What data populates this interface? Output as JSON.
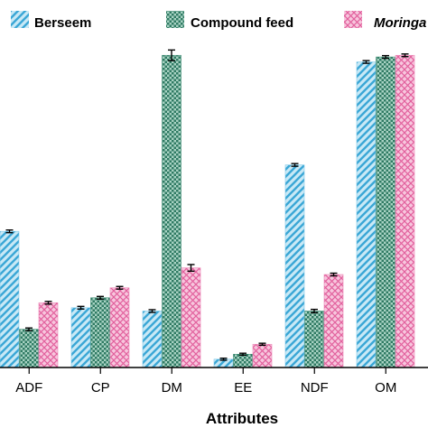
{
  "chart_data": {
    "type": "bar",
    "xlabel": "Attributes",
    "ylabel": "",
    "title": "",
    "categories": [
      "ADF",
      "CP",
      "DM",
      "EE",
      "NDF",
      "OM"
    ],
    "ylim": [
      0,
      100
    ],
    "legend_position": "top",
    "series": [
      {
        "name": "Berseem",
        "color": "#7fc9e8",
        "pattern": "diagonal-stripes",
        "values": [
          41,
          18,
          17,
          2.5,
          61,
          92
        ],
        "errors": [
          0.4,
          0.4,
          0.4,
          0.3,
          0.4,
          0.4
        ]
      },
      {
        "name": "Compound feed",
        "color": "#3d8a72",
        "pattern": "checker",
        "values": [
          11.5,
          21,
          94,
          4,
          17,
          93.5
        ],
        "errors": [
          0.4,
          0.4,
          1.6,
          0.3,
          0.5,
          0.4
        ]
      },
      {
        "name": "Moringa",
        "color": "#ec86b6",
        "pattern": "crosshatch",
        "values": [
          19.5,
          24,
          30,
          7,
          28,
          94
        ],
        "errors": [
          0.4,
          0.4,
          1.0,
          0.3,
          0.4,
          0.4
        ]
      }
    ]
  }
}
